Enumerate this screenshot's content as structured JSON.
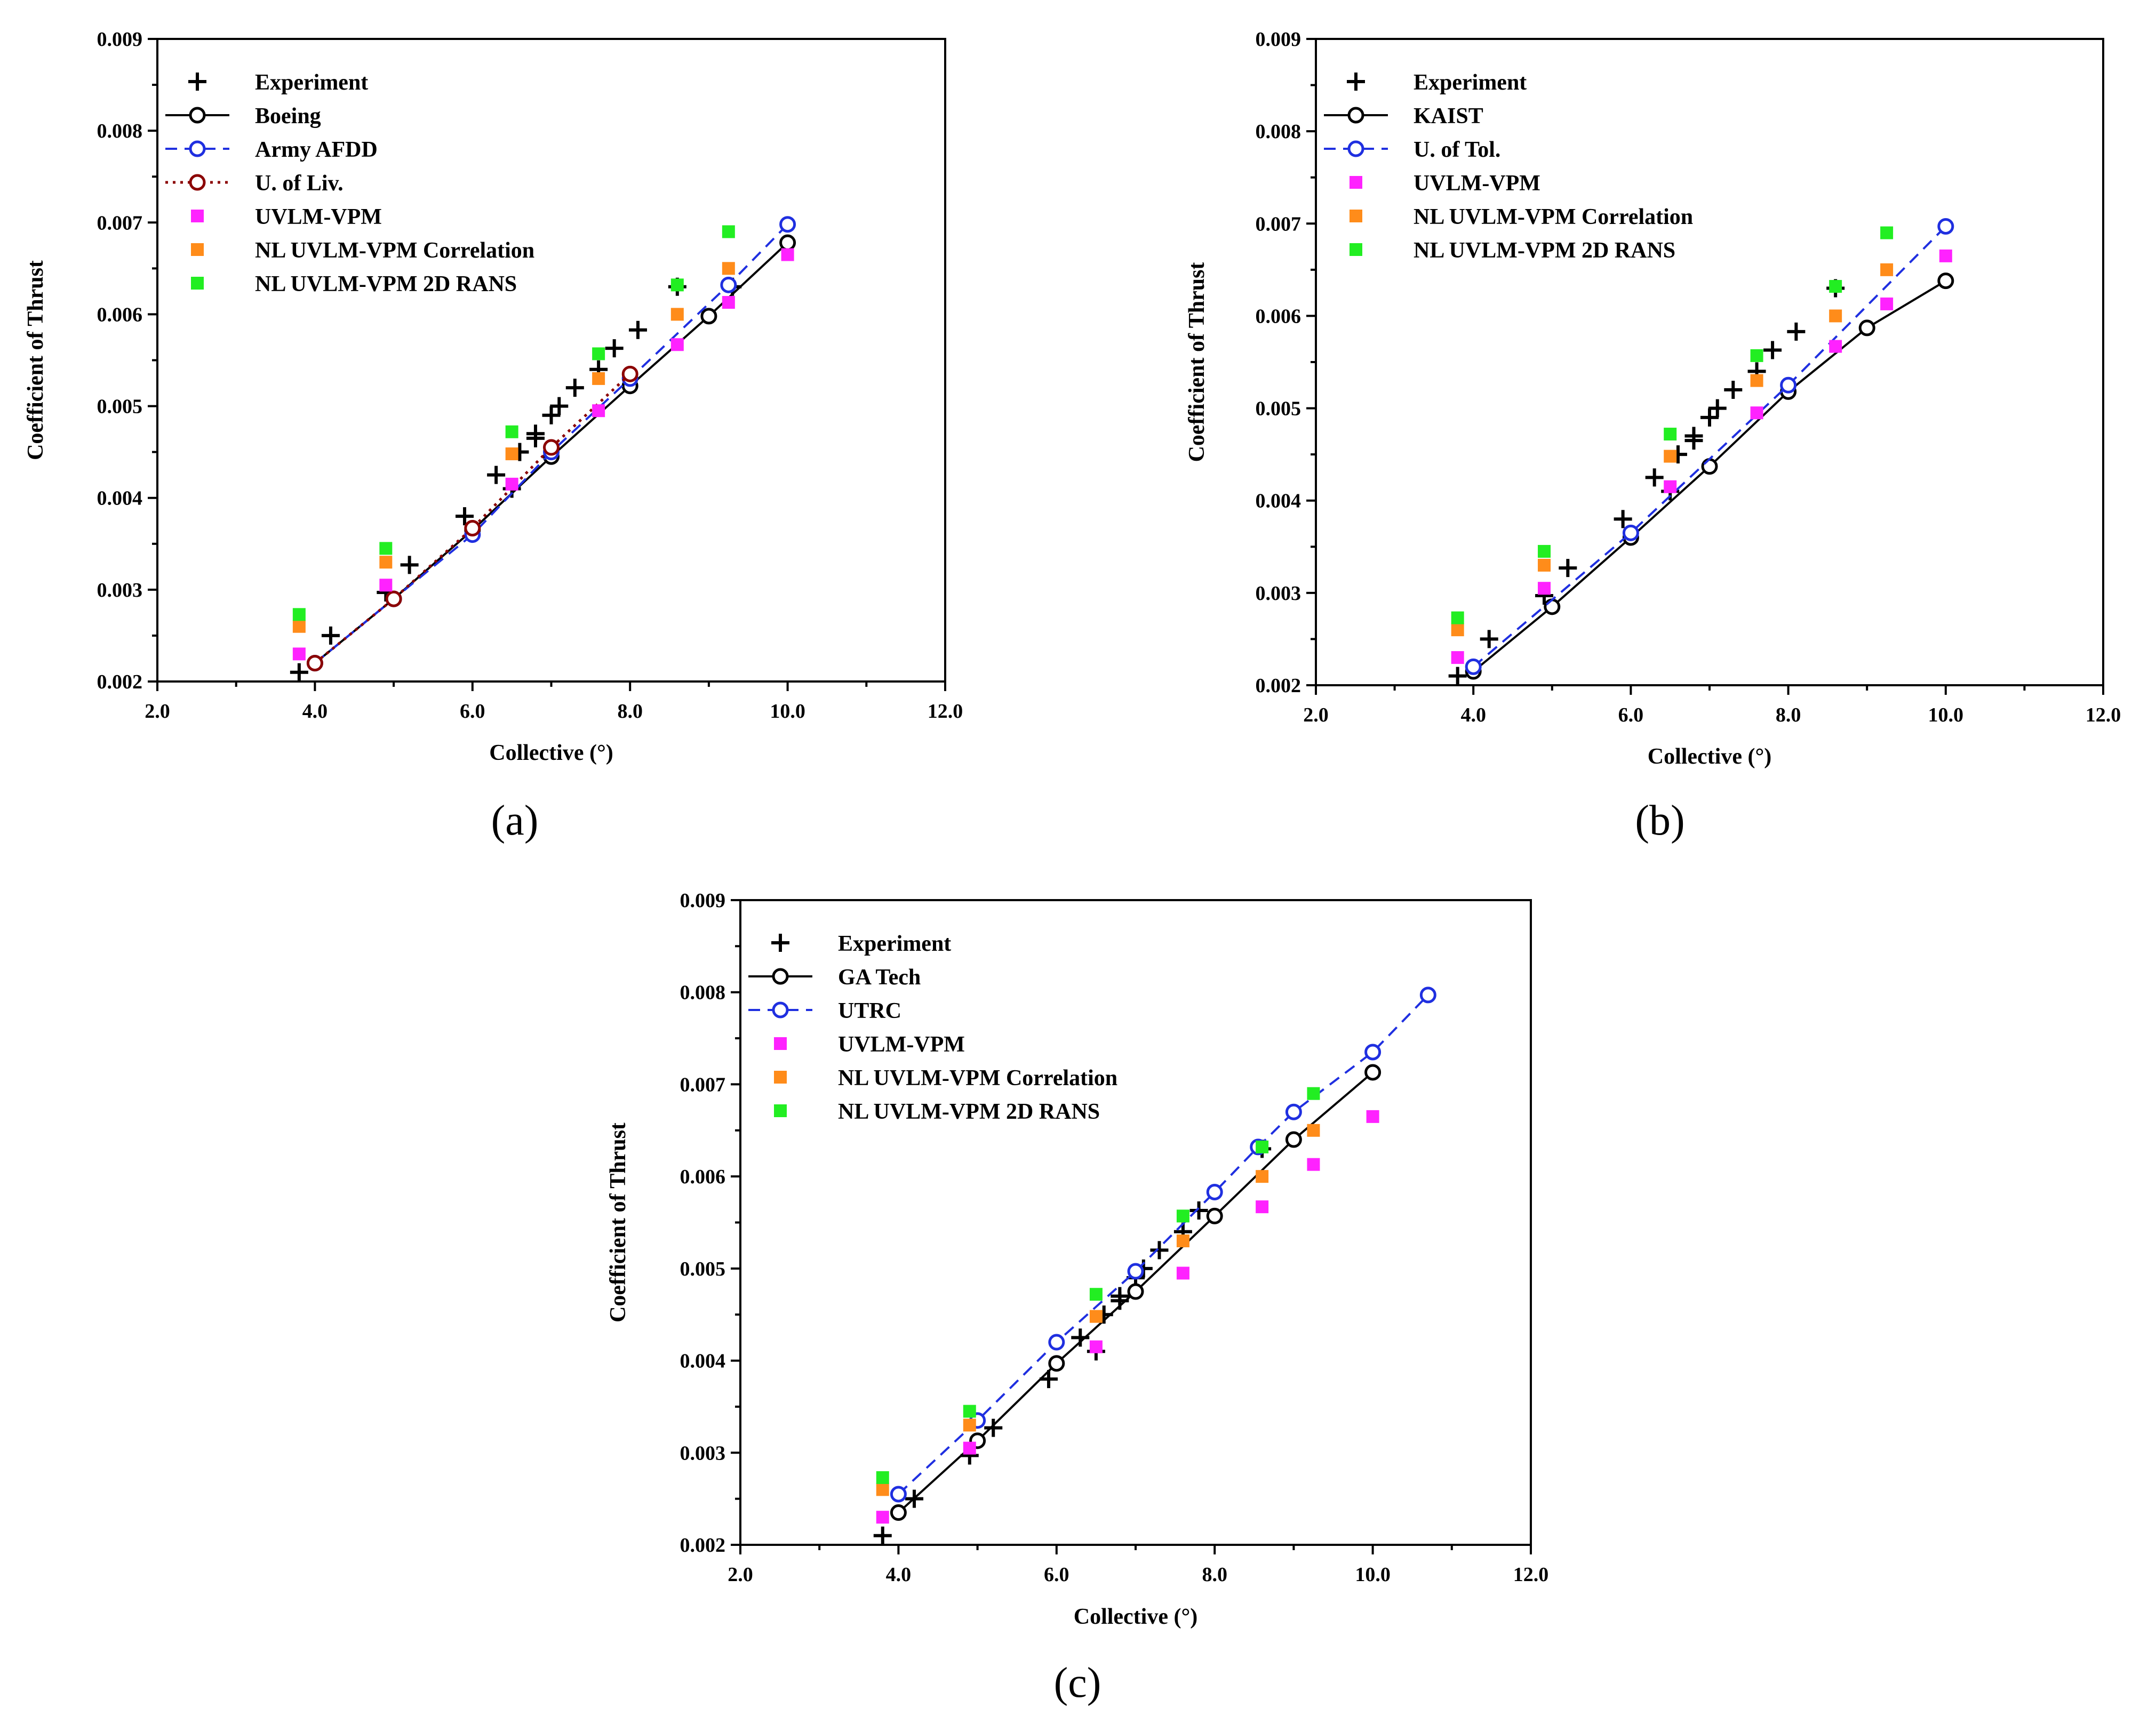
{
  "chart_data": [
    {
      "type": "scatter",
      "panel_label": "(a)",
      "xlabel": "Collective (°)",
      "ylabel": "Coefficient of Thrust",
      "xlim": [
        2.0,
        12.0
      ],
      "ylim": [
        0.002,
        0.009
      ],
      "xticks": [
        "2.0",
        "4.0",
        "6.0",
        "8.0",
        "10.0",
        "12.0"
      ],
      "yticks": [
        "0.002",
        "0.003",
        "0.004",
        "0.005",
        "0.006",
        "0.007",
        "0.008",
        "0.009"
      ],
      "legend_position": "top-left",
      "series": [
        {
          "name": "Experiment",
          "style": "plus",
          "color": "#000000",
          "points": [
            [
              3.8,
              0.0021
            ],
            [
              4.2,
              0.0025
            ],
            [
              4.9,
              0.00297
            ],
            [
              5.2,
              0.00327
            ],
            [
              5.9,
              0.0038
            ],
            [
              6.3,
              0.00425
            ],
            [
              6.5,
              0.0041
            ],
            [
              6.6,
              0.0045
            ],
            [
              6.8,
              0.0047
            ],
            [
              6.8,
              0.00465
            ],
            [
              7.0,
              0.0049
            ],
            [
              7.1,
              0.005
            ],
            [
              7.3,
              0.0052
            ],
            [
              7.6,
              0.0054
            ],
            [
              7.8,
              0.00563
            ],
            [
              8.1,
              0.00583
            ],
            [
              8.6,
              0.0063
            ],
            [
              9.3,
              0.0063
            ]
          ]
        },
        {
          "name": "Boeing",
          "style": "line-circle",
          "color": "#000000",
          "points": [
            [
              4.0,
              0.0022
            ],
            [
              5.0,
              0.0029
            ],
            [
              6.0,
              0.00365
            ],
            [
              7.0,
              0.00445
            ],
            [
              8.0,
              0.00522
            ],
            [
              9.0,
              0.00598
            ],
            [
              10.0,
              0.00678
            ]
          ]
        },
        {
          "name": "Army AFDD",
          "style": "dash-circle",
          "color": "#1f2fe0",
          "points": [
            [
              4.0,
              0.0022
            ],
            [
              5.0,
              0.0029
            ],
            [
              6.0,
              0.0036
            ],
            [
              7.0,
              0.0045
            ],
            [
              8.0,
              0.0053
            ],
            [
              9.25,
              0.00632
            ],
            [
              10.0,
              0.00698
            ]
          ]
        },
        {
          "name": "U. of Liv.",
          "style": "dot-circle",
          "color": "#8b0000",
          "points": [
            [
              4.0,
              0.0022
            ],
            [
              5.0,
              0.0029
            ],
            [
              6.0,
              0.00367
            ],
            [
              7.0,
              0.00455
            ],
            [
              8.0,
              0.00535
            ]
          ]
        },
        {
          "name": "UVLM-VPM",
          "style": "square",
          "color": "#ff22ff",
          "points": [
            [
              3.8,
              0.0023
            ],
            [
              4.9,
              0.00305
            ],
            [
              6.5,
              0.00415
            ],
            [
              7.6,
              0.00495
            ],
            [
              8.6,
              0.00567
            ],
            [
              9.25,
              0.00613
            ],
            [
              10.0,
              0.00665
            ]
          ]
        },
        {
          "name": "NL UVLM-VPM Correlation",
          "style": "square",
          "color": "#ff8c1a",
          "points": [
            [
              3.8,
              0.0026
            ],
            [
              4.9,
              0.0033
            ],
            [
              6.5,
              0.00448
            ],
            [
              7.6,
              0.0053
            ],
            [
              8.6,
              0.006
            ],
            [
              9.25,
              0.0065
            ]
          ]
        },
        {
          "name": "NL UVLM-VPM 2D RANS",
          "style": "square",
          "color": "#22ee22",
          "points": [
            [
              3.8,
              0.00273
            ],
            [
              4.9,
              0.00345
            ],
            [
              6.5,
              0.00472
            ],
            [
              7.6,
              0.00557
            ],
            [
              8.6,
              0.00632
            ],
            [
              9.25,
              0.0069
            ]
          ]
        }
      ]
    },
    {
      "type": "scatter",
      "panel_label": "(b)",
      "xlabel": "Collective (°)",
      "ylabel": "Coefficient of Thrust",
      "xlim": [
        2.0,
        12.0
      ],
      "ylim": [
        0.002,
        0.009
      ],
      "xticks": [
        "2.0",
        "4.0",
        "6.0",
        "8.0",
        "10.0",
        "12.0"
      ],
      "yticks": [
        "0.002",
        "0.003",
        "0.004",
        "0.005",
        "0.006",
        "0.007",
        "0.008",
        "0.009"
      ],
      "legend_position": "top-left",
      "series": [
        {
          "name": "Experiment",
          "style": "plus",
          "color": "#000000",
          "points": [
            [
              3.8,
              0.0021
            ],
            [
              4.2,
              0.0025
            ],
            [
              4.9,
              0.00297
            ],
            [
              5.2,
              0.00327
            ],
            [
              5.9,
              0.0038
            ],
            [
              6.3,
              0.00425
            ],
            [
              6.5,
              0.0041
            ],
            [
              6.6,
              0.0045
            ],
            [
              6.8,
              0.0047
            ],
            [
              6.8,
              0.00465
            ],
            [
              7.0,
              0.0049
            ],
            [
              7.1,
              0.005
            ],
            [
              7.3,
              0.0052
            ],
            [
              7.6,
              0.0054
            ],
            [
              7.8,
              0.00563
            ],
            [
              8.1,
              0.00583
            ],
            [
              8.6,
              0.0063
            ]
          ]
        },
        {
          "name": "KAIST",
          "style": "line-circle",
          "color": "#000000",
          "points": [
            [
              4.0,
              0.00215
            ],
            [
              5.0,
              0.00285
            ],
            [
              6.0,
              0.0036
            ],
            [
              7.0,
              0.00437
            ],
            [
              8.0,
              0.00518
            ],
            [
              9.0,
              0.00587
            ],
            [
              10.0,
              0.00638
            ]
          ]
        },
        {
          "name": "U. of Tol.",
          "style": "dash-circle",
          "color": "#1f2fe0",
          "points": [
            [
              4.0,
              0.0022
            ],
            [
              6.0,
              0.00365
            ],
            [
              8.0,
              0.00525
            ],
            [
              10.0,
              0.00697
            ]
          ]
        },
        {
          "name": "UVLM-VPM",
          "style": "square",
          "color": "#ff22ff",
          "points": [
            [
              3.8,
              0.0023
            ],
            [
              4.9,
              0.00305
            ],
            [
              6.5,
              0.00415
            ],
            [
              7.6,
              0.00495
            ],
            [
              8.6,
              0.00567
            ],
            [
              9.25,
              0.00613
            ],
            [
              10.0,
              0.00665
            ]
          ]
        },
        {
          "name": "NL UVLM-VPM Correlation",
          "style": "square",
          "color": "#ff8c1a",
          "points": [
            [
              3.8,
              0.0026
            ],
            [
              4.9,
              0.0033
            ],
            [
              6.5,
              0.00448
            ],
            [
              7.6,
              0.0053
            ],
            [
              8.6,
              0.006
            ],
            [
              9.25,
              0.0065
            ]
          ]
        },
        {
          "name": "NL UVLM-VPM 2D RANS",
          "style": "square",
          "color": "#22ee22",
          "points": [
            [
              3.8,
              0.00273
            ],
            [
              4.9,
              0.00345
            ],
            [
              6.5,
              0.00472
            ],
            [
              7.6,
              0.00557
            ],
            [
              8.6,
              0.00632
            ],
            [
              9.25,
              0.0069
            ]
          ]
        }
      ]
    },
    {
      "type": "scatter",
      "panel_label": "(c)",
      "xlabel": "Collective (°)",
      "ylabel": "Coefficient of Thrust",
      "xlim": [
        2.0,
        12.0
      ],
      "ylim": [
        0.002,
        0.009
      ],
      "xticks": [
        "2.0",
        "4.0",
        "6.0",
        "8.0",
        "10.0",
        "12.0"
      ],
      "yticks": [
        "0.002",
        "0.003",
        "0.004",
        "0.005",
        "0.006",
        "0.007",
        "0.008",
        "0.009"
      ],
      "legend_position": "top-left",
      "series": [
        {
          "name": "Experiment",
          "style": "plus",
          "color": "#000000",
          "points": [
            [
              3.8,
              0.0021
            ],
            [
              4.2,
              0.0025
            ],
            [
              4.9,
              0.00297
            ],
            [
              5.2,
              0.00327
            ],
            [
              5.9,
              0.0038
            ],
            [
              6.3,
              0.00425
            ],
            [
              6.5,
              0.0041
            ],
            [
              6.6,
              0.0045
            ],
            [
              6.8,
              0.0047
            ],
            [
              6.8,
              0.00465
            ],
            [
              7.0,
              0.0049
            ],
            [
              7.1,
              0.005
            ],
            [
              7.3,
              0.0052
            ],
            [
              7.6,
              0.0054
            ],
            [
              7.8,
              0.00563
            ],
            [
              8.6,
              0.0063
            ]
          ]
        },
        {
          "name": "GA Tech",
          "style": "line-circle",
          "color": "#000000",
          "points": [
            [
              4.0,
              0.00235
            ],
            [
              5.0,
              0.00313
            ],
            [
              6.0,
              0.00397
            ],
            [
              7.0,
              0.00475
            ],
            [
              8.0,
              0.00557
            ],
            [
              9.0,
              0.0064
            ],
            [
              10.0,
              0.00713
            ]
          ]
        },
        {
          "name": "UTRC",
          "style": "dash-circle",
          "color": "#1f2fe0",
          "points": [
            [
              4.0,
              0.00255
            ],
            [
              5.0,
              0.00335
            ],
            [
              6.0,
              0.0042
            ],
            [
              7.0,
              0.00497
            ],
            [
              8.0,
              0.00583
            ],
            [
              8.55,
              0.00632
            ],
            [
              9.0,
              0.0067
            ],
            [
              10.0,
              0.00735
            ],
            [
              10.7,
              0.00797
            ]
          ]
        },
        {
          "name": "UVLM-VPM",
          "style": "square",
          "color": "#ff22ff",
          "points": [
            [
              3.8,
              0.0023
            ],
            [
              4.9,
              0.00305
            ],
            [
              6.5,
              0.00415
            ],
            [
              7.6,
              0.00495
            ],
            [
              8.6,
              0.00567
            ],
            [
              9.25,
              0.00613
            ],
            [
              10.0,
              0.00665
            ]
          ]
        },
        {
          "name": "NL UVLM-VPM Correlation",
          "style": "square",
          "color": "#ff8c1a",
          "points": [
            [
              3.8,
              0.0026
            ],
            [
              4.9,
              0.0033
            ],
            [
              6.5,
              0.00448
            ],
            [
              7.6,
              0.0053
            ],
            [
              8.6,
              0.006
            ],
            [
              9.25,
              0.0065
            ]
          ]
        },
        {
          "name": "NL UVLM-VPM 2D RANS",
          "style": "square",
          "color": "#22ee22",
          "points": [
            [
              3.8,
              0.00273
            ],
            [
              4.9,
              0.00345
            ],
            [
              6.5,
              0.00472
            ],
            [
              7.6,
              0.00557
            ],
            [
              8.6,
              0.00632
            ],
            [
              9.25,
              0.0069
            ]
          ]
        }
      ]
    }
  ]
}
